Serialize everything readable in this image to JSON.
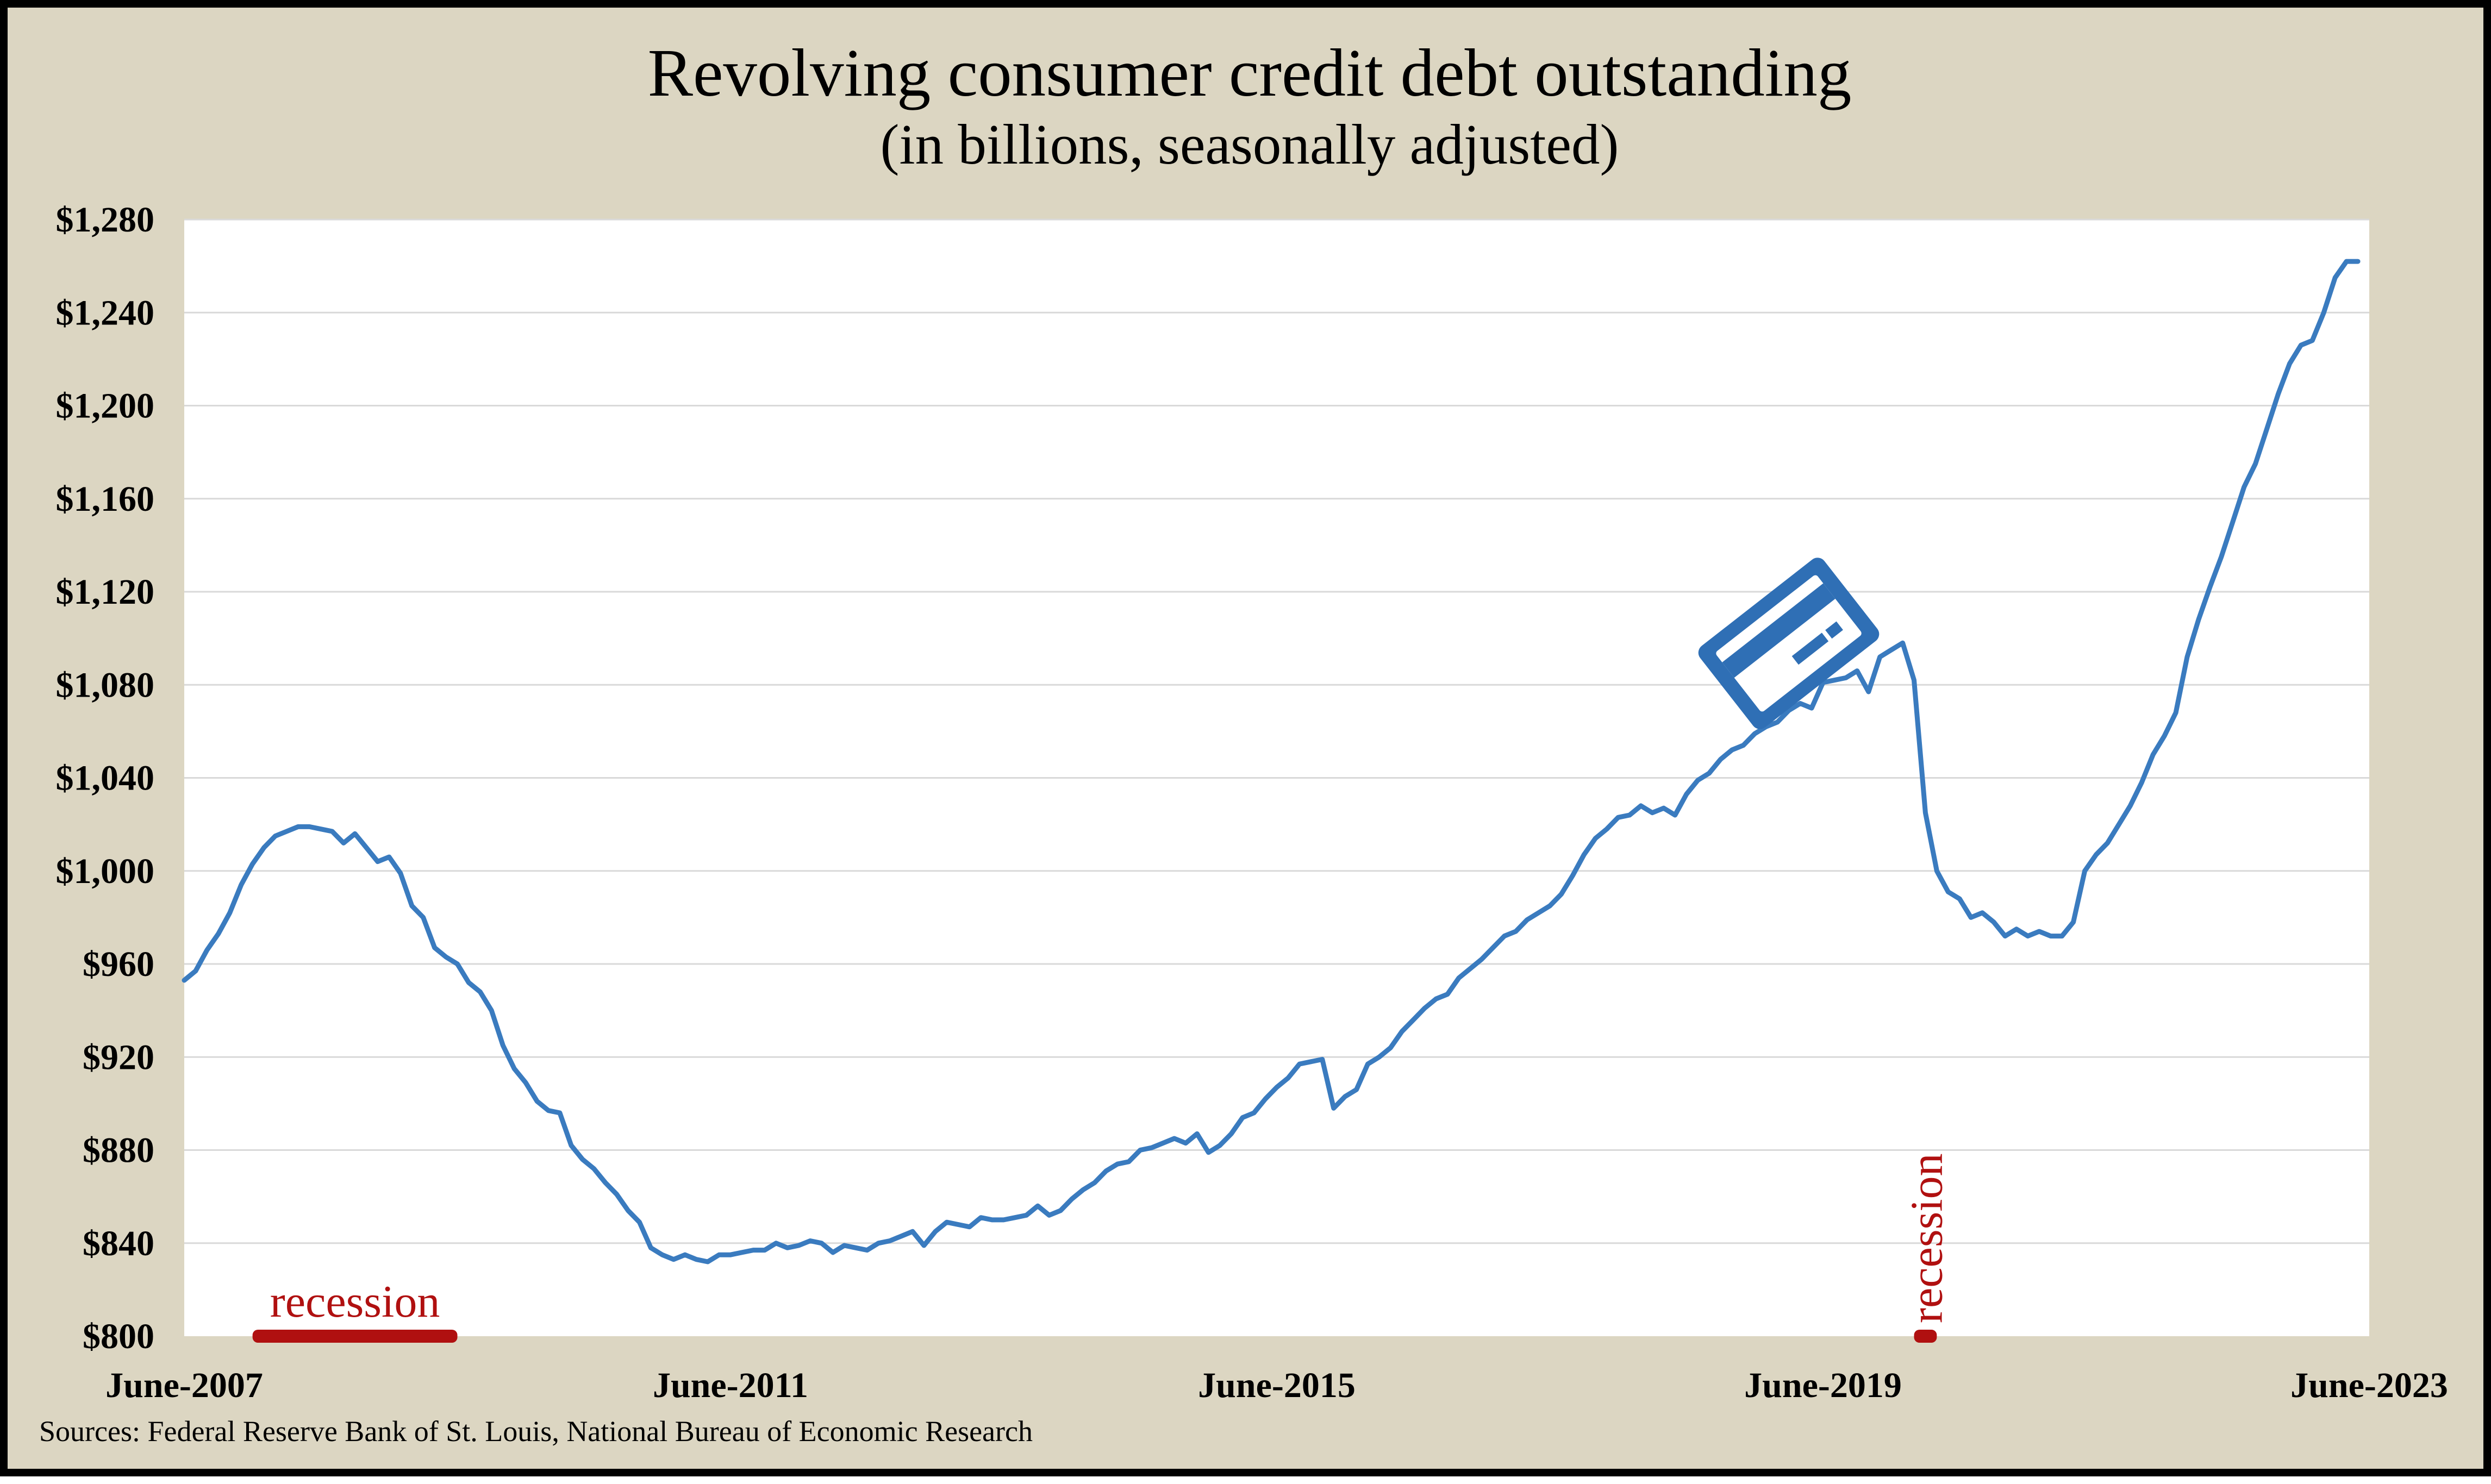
{
  "chart_data": {
    "type": "line",
    "title": "Revolving consumer credit debt outstanding",
    "subtitle": "(in billions, seasonally adjusted)",
    "source": "Sources: Federal Reserve Bank of St. Louis, National Bureau of Economic Research",
    "ylim": [
      800,
      1280
    ],
    "y_ticks": [
      800,
      840,
      880,
      920,
      960,
      1000,
      1040,
      1080,
      1120,
      1160,
      1200,
      1240,
      1280
    ],
    "y_tick_labels": [
      "$800",
      "$840",
      "$880",
      "$920",
      "$960",
      "$1,000",
      "$1,040",
      "$1,080",
      "$1,120",
      "$1,160",
      "$1,200",
      "$1,240",
      "$1,280"
    ],
    "x_tick_labels": [
      {
        "label": "June-2007",
        "month": 0
      },
      {
        "label": "June-2011",
        "month": 48
      },
      {
        "label": "June-2015",
        "month": 96
      },
      {
        "label": "June-2019",
        "month": 144
      },
      {
        "label": "June-2023",
        "month": 192
      }
    ],
    "grid": true,
    "line_color": "#3a7bbf",
    "recession_color": "#b01010",
    "recessions": [
      {
        "label": "recession",
        "start_month": 6,
        "end_month": 24
      },
      {
        "label": "recession",
        "start_month": 152,
        "end_month": 154
      }
    ],
    "icon": "credit-card-icon",
    "series": [
      {
        "x_start": "2007-06",
        "frequency": "monthly",
        "values": [
          953,
          957,
          966,
          973,
          982,
          994,
          1003,
          1010,
          1015,
          1017,
          1019,
          1019,
          1018,
          1017,
          1012,
          1016,
          1010,
          1004,
          1006,
          999,
          985,
          980,
          967,
          963,
          960,
          952,
          948,
          940,
          925,
          915,
          909,
          901,
          897,
          896,
          882,
          876,
          872,
          866,
          861,
          854,
          849,
          838,
          835,
          833,
          835,
          833,
          832,
          835,
          835,
          836,
          837,
          837,
          840,
          838,
          839,
          841,
          840,
          836,
          839,
          838,
          837,
          840,
          841,
          843,
          845,
          839,
          845,
          849,
          848,
          847,
          851,
          850,
          850,
          851,
          852,
          856,
          852,
          854,
          859,
          863,
          866,
          871,
          874,
          875,
          880,
          881,
          883,
          885,
          883,
          887,
          879,
          882,
          887,
          894,
          896,
          902,
          907,
          911,
          917,
          918,
          919,
          898,
          903,
          906,
          917,
          920,
          924,
          931,
          936,
          941,
          945,
          947,
          954,
          958,
          962,
          967,
          972,
          974,
          979,
          982,
          985,
          990,
          998,
          1007,
          1014,
          1018,
          1023,
          1024,
          1028,
          1025,
          1027,
          1024,
          1033,
          1039,
          1042,
          1048,
          1052,
          1054,
          1059,
          1062,
          1064,
          1069,
          1072,
          1070,
          1081,
          1082,
          1083,
          1086,
          1077,
          1092,
          1095,
          1098,
          1082,
          1025,
          1000,
          991,
          988,
          980,
          982,
          978,
          972,
          975,
          972,
          974,
          972,
          972,
          978,
          1000,
          1007,
          1012,
          1020,
          1028,
          1038,
          1050,
          1058,
          1068,
          1092,
          1108,
          1122,
          1135,
          1150,
          1165,
          1175,
          1190,
          1205,
          1218,
          1226,
          1228,
          1240,
          1255,
          1262,
          1262
        ]
      }
    ]
  }
}
